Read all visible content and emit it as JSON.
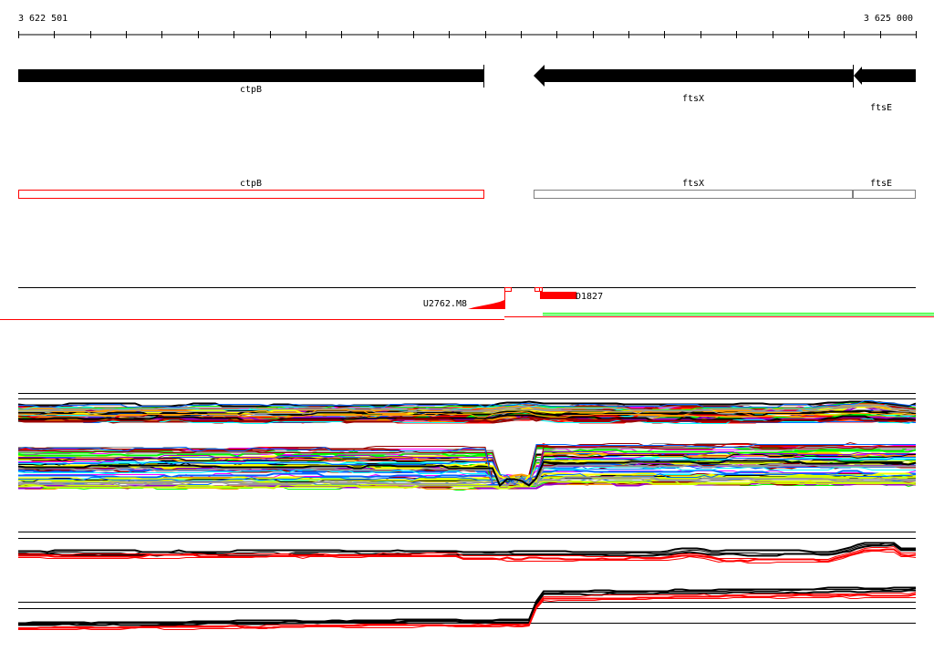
{
  "ruler": {
    "start_label": "3 622 501",
    "end_label": "3 625 000",
    "start": 3622501,
    "end": 3625000,
    "tick_step_bp": 100
  },
  "genes": [
    {
      "name": "ctpB",
      "strand": "+",
      "start": 3622501,
      "end": 3623800
    },
    {
      "name": "ftsX",
      "strand": "-",
      "start": 3623940,
      "end": 3624830
    },
    {
      "name": "ftsE",
      "strand": "-",
      "start": 3624830,
      "end": 3625000
    }
  ],
  "annotations": [
    {
      "name": "ctpB",
      "outline_color": "#ff0000"
    },
    {
      "name": "ftsX",
      "outline_color": "#808080"
    },
    {
      "name": "ftsE",
      "outline_color": "#808080"
    }
  ],
  "features": {
    "left_label": "U2762.M8",
    "right_label": "D1827",
    "feature_color": "#ff0000"
  },
  "track_colors": [
    "#ff0000",
    "#ff00ff",
    "#00ffff",
    "#0066ff",
    "#00ff00",
    "#ccff00",
    "#ff9900",
    "#999999",
    "#000000",
    "#990000",
    "#9900cc",
    "#ffff00"
  ],
  "profile_colors": {
    "primary": "#000000",
    "secondary": "#ff0000"
  }
}
